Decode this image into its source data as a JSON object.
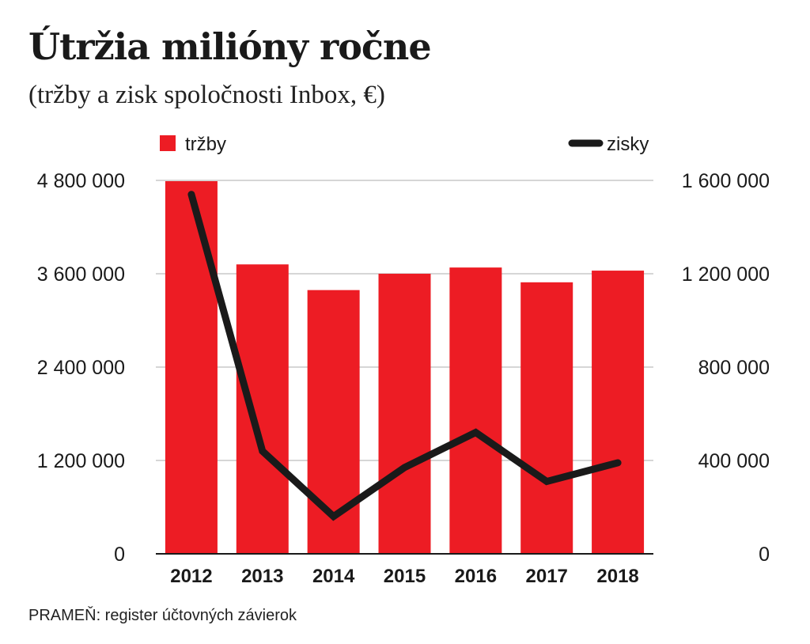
{
  "header": {
    "title": "Útržia milióny ročne",
    "subtitle": "(tržby a zisk spoločnosti Inbox, €)"
  },
  "footer": {
    "source": "PRAMEŇ: register účtovných závierok"
  },
  "colors": {
    "bars": "#ed1c24",
    "line": "#1a1a1a",
    "grid": "#c8c8c8"
  },
  "chart_data": {
    "type": "bar",
    "categories": [
      "2012",
      "2013",
      "2014",
      "2015",
      "2016",
      "2017",
      "2018"
    ],
    "series": [
      {
        "name": "tržby",
        "type": "bar",
        "axis": "left",
        "values": [
          4790000,
          3720000,
          3390000,
          3600000,
          3680000,
          3490000,
          3640000
        ]
      },
      {
        "name": "zisky",
        "type": "line",
        "axis": "right",
        "values": [
          1540000,
          440000,
          160000,
          370000,
          520000,
          310000,
          390000
        ]
      }
    ],
    "y_left": {
      "min": 0,
      "max": 4800000,
      "ticks": [
        "0",
        "1 200 000",
        "2 400 000",
        "3 600 000",
        "4 800 000"
      ]
    },
    "y_right": {
      "min": 0,
      "max": 1600000,
      "ticks": [
        "0",
        "400 000",
        "800 000",
        "1 200 000",
        "1 600 000"
      ]
    },
    "grid": true,
    "legend_position": "top"
  }
}
